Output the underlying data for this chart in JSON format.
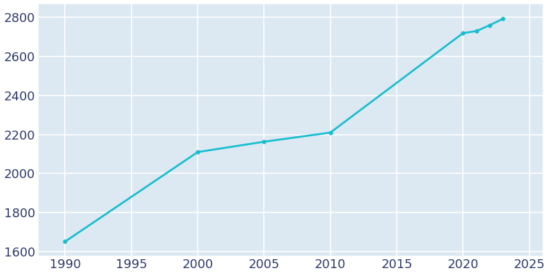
{
  "years": [
    1990,
    2000,
    2005,
    2010,
    2020,
    2021,
    2022,
    2023
  ],
  "population": [
    1651,
    2110,
    2163,
    2210,
    2720,
    2730,
    2760,
    2793
  ],
  "line_color": "#17becf",
  "fig_bg_color": "#ffffff",
  "plot_bg_color": "#dce8f2",
  "grid_color": "#ffffff",
  "tick_color": "#2d3a6b",
  "xlim": [
    1988,
    2026
  ],
  "ylim": [
    1580,
    2870
  ],
  "xticks": [
    1990,
    1995,
    2000,
    2005,
    2010,
    2015,
    2020,
    2025
  ],
  "yticks": [
    1600,
    1800,
    2000,
    2200,
    2400,
    2600,
    2800
  ],
  "linewidth": 2.0,
  "marker": "o",
  "markersize": 3.5,
  "tick_fontsize": 13
}
